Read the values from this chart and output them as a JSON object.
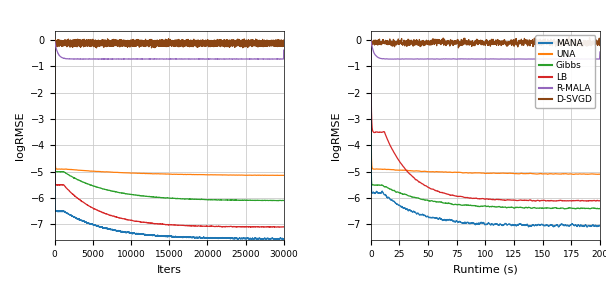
{
  "ylabel": "logRMSE",
  "xlabel_left": "Iters",
  "xlabel_right": "Runtime (s)",
  "ylim": [
    -7.6,
    0.35
  ],
  "xlim_left": [
    0,
    30000
  ],
  "xlim_right": [
    0,
    200
  ],
  "yticks": [
    0,
    -1,
    -2,
    -3,
    -4,
    -5,
    -6,
    -7
  ],
  "xticks_left": [
    0,
    5000,
    10000,
    15000,
    20000,
    25000,
    30000
  ],
  "xticks_right": [
    0,
    25,
    50,
    75,
    100,
    125,
    150,
    175,
    200
  ],
  "colors": {
    "MANA": "#1f77b4",
    "UNA": "#ff7f0e",
    "Gibbs": "#2ca02c",
    "LB": "#d62728",
    "R-MALA": "#9467bd",
    "D-SVGD": "#8B4513"
  },
  "background_color": "#ffffff",
  "grid_color": "#cccccc",
  "seed": 0
}
